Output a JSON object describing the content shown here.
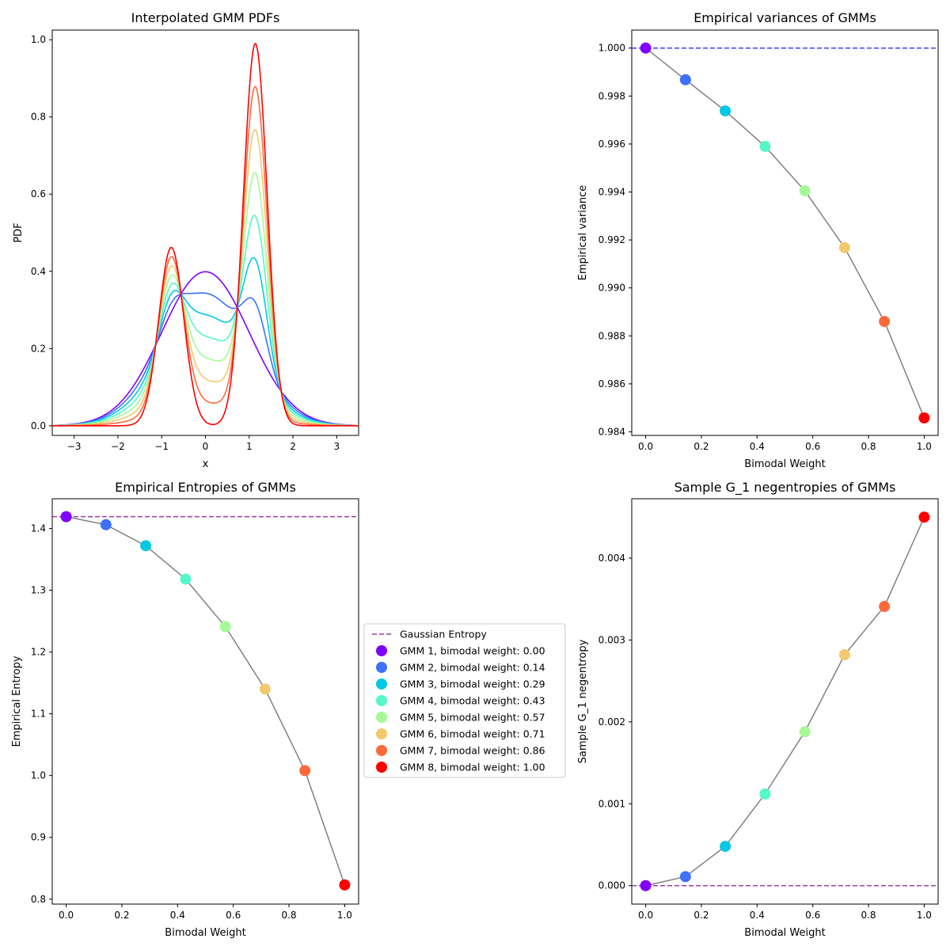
{
  "gmm_colors": [
    "#8000ff",
    "#3e70fa",
    "#04c8e4",
    "#56f7c8",
    "#a5f996",
    "#f2c96f",
    "#fd6a3a",
    "#ff0000"
  ],
  "chart_data": [
    {
      "id": "pdf",
      "type": "line",
      "title": "Interpolated GMM PDFs",
      "xlabel": "x",
      "ylabel": "PDF",
      "xlim": [
        -3.5,
        3.5
      ],
      "ylim": [
        -0.025,
        1.025
      ],
      "xticks": [
        "−3",
        "−2",
        "−1",
        "0",
        "1",
        "2",
        "3"
      ],
      "yticks": [
        "0.0",
        "0.2",
        "0.4",
        "0.6",
        "0.8",
        "1.0"
      ],
      "grid": false,
      "bimodal_weights": [
        0.0,
        0.142857,
        0.285714,
        0.428571,
        0.571429,
        0.714286,
        0.857143,
        1.0
      ],
      "bimodal_components": [
        {
          "weight": 0.33,
          "mean": -0.78,
          "std": 0.285
        },
        {
          "weight": 0.67,
          "mean": 1.14,
          "std": 0.27
        }
      ],
      "gaussian_component": {
        "mean": 0.0,
        "std": 1.0
      }
    },
    {
      "id": "variance",
      "type": "line",
      "title": "Empirical variances of GMMs",
      "xlabel": "Bimodal Weight",
      "ylabel": "Empirical variance",
      "xlim": [
        -0.05,
        1.05
      ],
      "ylim": [
        0.98385,
        1.00075
      ],
      "xticks": [
        "0.0",
        "0.2",
        "0.4",
        "0.6",
        "0.8",
        "1.0"
      ],
      "yticks": [
        "0.984",
        "0.986",
        "0.988",
        "0.990",
        "0.992",
        "0.994",
        "0.996",
        "0.998",
        "1.000"
      ],
      "x": [
        0.0,
        0.142857,
        0.285714,
        0.428571,
        0.571429,
        0.714286,
        0.857143,
        1.0
      ],
      "y": [
        1.0,
        0.99868,
        0.99738,
        0.9959,
        0.99405,
        0.99168,
        0.9886,
        0.98458
      ],
      "reference_line": 1.0
    },
    {
      "id": "entropy",
      "type": "line",
      "title": "Empirical Entropies of GMMs",
      "xlabel": "Bimodal Weight",
      "ylabel": "Empirical Entropy",
      "xlim": [
        -0.05,
        1.05
      ],
      "ylim": [
        0.792,
        1.448
      ],
      "xticks": [
        "0.0",
        "0.2",
        "0.4",
        "0.6",
        "0.8",
        "1.0"
      ],
      "yticks": [
        "0.8",
        "0.9",
        "1.0",
        "1.1",
        "1.2",
        "1.3",
        "1.4"
      ],
      "x": [
        0.0,
        0.142857,
        0.285714,
        0.428571,
        0.571429,
        0.714286,
        0.857143,
        1.0
      ],
      "y": [
        1.419,
        1.406,
        1.372,
        1.318,
        1.241,
        1.14,
        1.008,
        0.823
      ],
      "reference_line": 1.419
    },
    {
      "id": "negentropy",
      "type": "line",
      "title": "Sample G_1 negentropies of GMMs",
      "xlabel": "Bimodal Weight",
      "ylabel": "Sample G_1 negentropy",
      "xlim": [
        -0.05,
        1.05
      ],
      "ylim": [
        -0.000225,
        0.004725
      ],
      "xticks": [
        "0.0",
        "0.2",
        "0.4",
        "0.6",
        "0.8",
        "1.0"
      ],
      "yticks": [
        "0.000",
        "0.001",
        "0.002",
        "0.003",
        "0.004"
      ],
      "x": [
        0.0,
        0.142857,
        0.285714,
        0.428571,
        0.571429,
        0.714286,
        0.857143,
        1.0
      ],
      "y": [
        0.0,
        0.00011,
        0.00048,
        0.00112,
        0.00188,
        0.00282,
        0.00341,
        0.0045
      ],
      "reference_line": 0.0
    }
  ],
  "legend": {
    "placement": "center",
    "entries": [
      "Gaussian Entropy",
      "GMM 1, bimodal weight: 0.00",
      "GMM 2, bimodal weight: 0.14",
      "GMM 3, bimodal weight: 0.29",
      "GMM 4, bimodal weight: 0.43",
      "GMM 5, bimodal weight: 0.57",
      "GMM 6, bimodal weight: 0.71",
      "GMM 7, bimodal weight: 0.86",
      "GMM 8, bimodal weight: 1.00"
    ]
  }
}
